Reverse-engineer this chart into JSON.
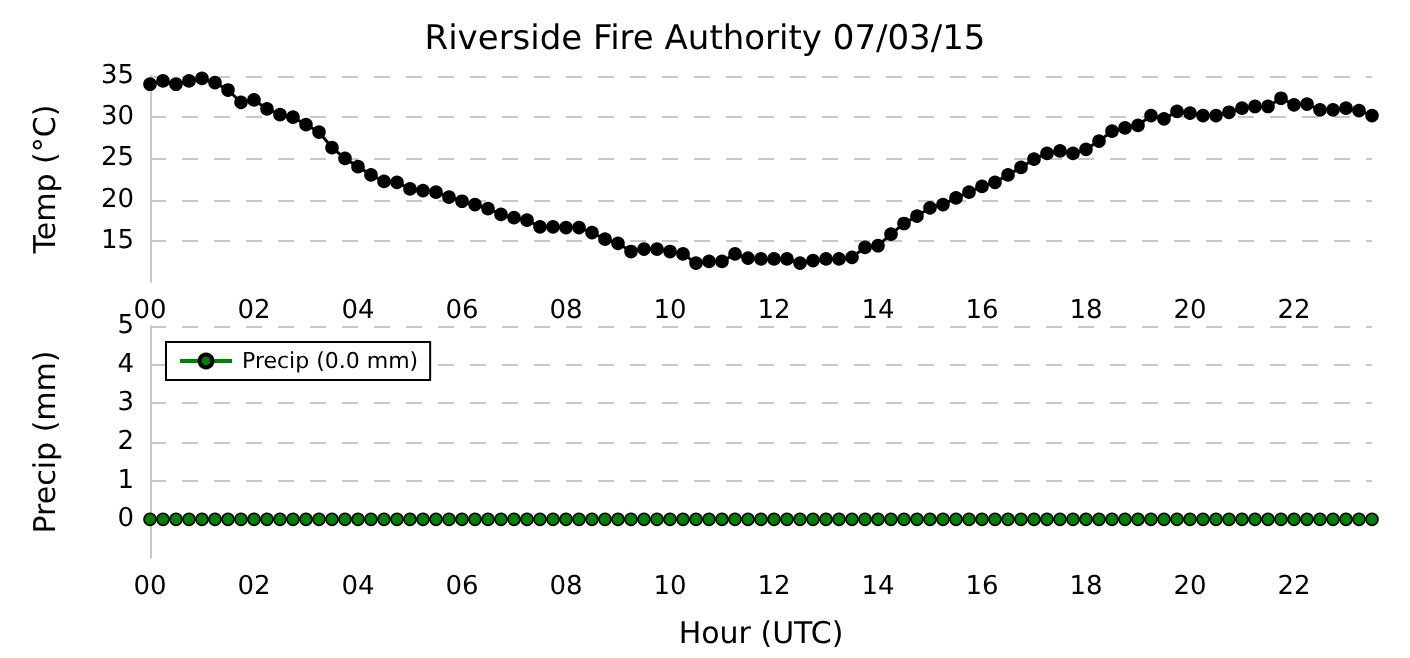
{
  "chart_data": [
    {
      "type": "line",
      "title": "Riverside Fire Authority 07/03/15",
      "ylabel": "Temp (°C)",
      "x": [
        0,
        0.25,
        0.5,
        0.75,
        1,
        1.25,
        1.5,
        1.75,
        2,
        2.25,
        2.5,
        2.75,
        3,
        3.25,
        3.5,
        3.75,
        4,
        4.25,
        4.5,
        4.75,
        5,
        5.25,
        5.5,
        5.75,
        6,
        6.25,
        6.5,
        6.75,
        7,
        7.25,
        7.5,
        7.75,
        8,
        8.25,
        8.5,
        8.75,
        9,
        9.25,
        9.5,
        9.75,
        10,
        10.25,
        10.5,
        10.75,
        11,
        11.25,
        11.5,
        11.75,
        12,
        12.25,
        12.5,
        12.75,
        13,
        13.25,
        13.5,
        13.75,
        14,
        14.25,
        14.5,
        14.75,
        15,
        15.25,
        15.5,
        15.75,
        16,
        16.25,
        16.5,
        16.75,
        17,
        17.25,
        17.5,
        17.75,
        18,
        18.25,
        18.5,
        18.75,
        19,
        19.25,
        19.5,
        19.75,
        20,
        20.25,
        20.5,
        20.75,
        21,
        21.25,
        21.5,
        21.75,
        22,
        22.25,
        22.5,
        22.75,
        23,
        23.25,
        23.5
      ],
      "series": [
        {
          "color": "#000000",
          "values": [
            34.0,
            34.4,
            34.0,
            34.4,
            34.7,
            34.2,
            33.3,
            31.8,
            32.1,
            31.0,
            30.3,
            30.0,
            29.1,
            28.2,
            26.3,
            25.0,
            24.0,
            23.0,
            22.2,
            22.1,
            21.3,
            21.1,
            20.9,
            20.3,
            19.8,
            19.4,
            18.9,
            18.2,
            17.8,
            17.5,
            16.7,
            16.7,
            16.6,
            16.6,
            16.0,
            15.2,
            14.7,
            13.7,
            14.0,
            14.0,
            13.7,
            13.4,
            12.3,
            12.5,
            12.5,
            13.4,
            12.9,
            12.8,
            12.8,
            12.8,
            12.3,
            12.6,
            12.8,
            12.8,
            13.0,
            14.2,
            14.4,
            15.8,
            17.1,
            18.0,
            19.0,
            19.4,
            20.2,
            20.9,
            21.6,
            22.1,
            23.0,
            23.9,
            24.9,
            25.6,
            25.9,
            25.6,
            26.1,
            27.1,
            28.3,
            28.7,
            29.0,
            30.2,
            29.8,
            30.7,
            30.5,
            30.2,
            30.2,
            30.6,
            31.1,
            31.3,
            31.3,
            32.3,
            31.5,
            31.6,
            30.9,
            30.9,
            31.1,
            30.8,
            30.2
          ]
        }
      ],
      "xlim": [
        0,
        23.5
      ],
      "xticks": [
        {
          "value": 0,
          "label": "00"
        },
        {
          "value": 2,
          "label": "02"
        },
        {
          "value": 4,
          "label": "04"
        },
        {
          "value": 6,
          "label": "06"
        },
        {
          "value": 8,
          "label": "08"
        },
        {
          "value": 10,
          "label": "10"
        },
        {
          "value": 12,
          "label": "12"
        },
        {
          "value": 14,
          "label": "14"
        },
        {
          "value": 16,
          "label": "16"
        },
        {
          "value": 18,
          "label": "18"
        },
        {
          "value": 20,
          "label": "20"
        },
        {
          "value": 22,
          "label": "22"
        }
      ],
      "ylim": [
        10,
        35
      ],
      "yticks": [
        15,
        20,
        25,
        30,
        35
      ],
      "grid": "y",
      "marker": "circle",
      "line_style": "solid"
    },
    {
      "type": "line",
      "ylabel": "Precip (mm)",
      "xlabel": "Hour (UTC)",
      "x": [
        0,
        0.25,
        0.5,
        0.75,
        1,
        1.25,
        1.5,
        1.75,
        2,
        2.25,
        2.5,
        2.75,
        3,
        3.25,
        3.5,
        3.75,
        4,
        4.25,
        4.5,
        4.75,
        5,
        5.25,
        5.5,
        5.75,
        6,
        6.25,
        6.5,
        6.75,
        7,
        7.25,
        7.5,
        7.75,
        8,
        8.25,
        8.5,
        8.75,
        9,
        9.25,
        9.5,
        9.75,
        10,
        10.25,
        10.5,
        10.75,
        11,
        11.25,
        11.5,
        11.75,
        12,
        12.25,
        12.5,
        12.75,
        13,
        13.25,
        13.5,
        13.75,
        14,
        14.25,
        14.5,
        14.75,
        15,
        15.25,
        15.5,
        15.75,
        16,
        16.25,
        16.5,
        16.75,
        17,
        17.25,
        17.5,
        17.75,
        18,
        18.25,
        18.5,
        18.75,
        19,
        19.25,
        19.5,
        19.75,
        20,
        20.25,
        20.5,
        20.75,
        21,
        21.25,
        21.5,
        21.75,
        22,
        22.25,
        22.5,
        22.75,
        23,
        23.25,
        23.5
      ],
      "series": [
        {
          "name": "Precip (0.0 mm)",
          "color": "#008000",
          "values": [
            0,
            0,
            0,
            0,
            0,
            0,
            0,
            0,
            0,
            0,
            0,
            0,
            0,
            0,
            0,
            0,
            0,
            0,
            0,
            0,
            0,
            0,
            0,
            0,
            0,
            0,
            0,
            0,
            0,
            0,
            0,
            0,
            0,
            0,
            0,
            0,
            0,
            0,
            0,
            0,
            0,
            0,
            0,
            0,
            0,
            0,
            0,
            0,
            0,
            0,
            0,
            0,
            0,
            0,
            0,
            0,
            0,
            0,
            0,
            0,
            0,
            0,
            0,
            0,
            0,
            0,
            0,
            0,
            0,
            0,
            0,
            0,
            0,
            0,
            0,
            0,
            0,
            0,
            0,
            0,
            0,
            0,
            0,
            0,
            0,
            0,
            0,
            0,
            0,
            0,
            0,
            0,
            0,
            0,
            0
          ]
        }
      ],
      "xlim": [
        0,
        23.5
      ],
      "xticks": [
        {
          "value": 0,
          "label": "00"
        },
        {
          "value": 2,
          "label": "02"
        },
        {
          "value": 4,
          "label": "04"
        },
        {
          "value": 6,
          "label": "06"
        },
        {
          "value": 8,
          "label": "08"
        },
        {
          "value": 10,
          "label": "10"
        },
        {
          "value": 12,
          "label": "12"
        },
        {
          "value": 14,
          "label": "14"
        },
        {
          "value": 16,
          "label": "16"
        },
        {
          "value": 18,
          "label": "18"
        },
        {
          "value": 20,
          "label": "20"
        },
        {
          "value": 22,
          "label": "22"
        }
      ],
      "ylim": [
        -1,
        5
      ],
      "yticks": [
        0,
        1,
        2,
        3,
        4,
        5
      ],
      "grid": "y",
      "legend": "top left",
      "marker": "circle",
      "line_style": "solid"
    }
  ]
}
